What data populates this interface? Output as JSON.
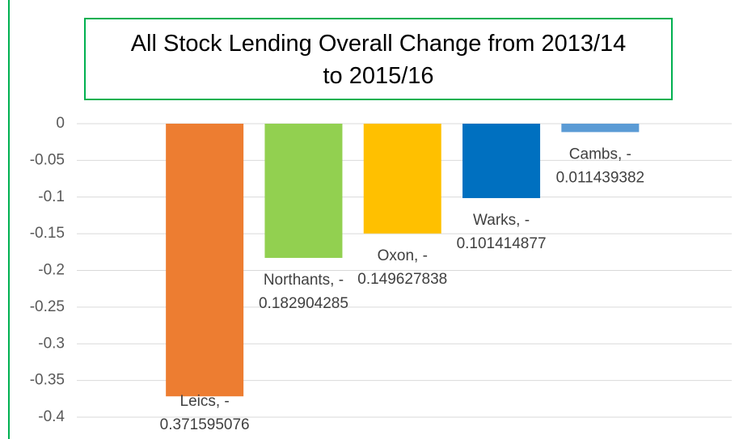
{
  "chart_data": {
    "type": "bar",
    "title": "All Stock Lending Overall Change from 2013/14 to 2015/16",
    "values": [
      -0.371595076,
      -0.182904285,
      -0.149627838,
      -0.101414877,
      -0.011439382
    ],
    "value_labels": [
      "Leics, -0.371595076",
      "Northants, -0.182904285",
      "Oxon, -0.149627838",
      "Warks, -0.101414877",
      "Cambs, -0.011439382"
    ],
    "colors": [
      "#ED7D31",
      "#92D050",
      "#FFC000",
      "#0070C0",
      "#5B9BD5"
    ],
    "ylim": [
      -0.4,
      0
    ],
    "yticks": [
      0,
      -0.05,
      -0.1,
      -0.15,
      -0.2,
      -0.25,
      -0.3,
      -0.35,
      -0.4
    ],
    "grid": true
  }
}
